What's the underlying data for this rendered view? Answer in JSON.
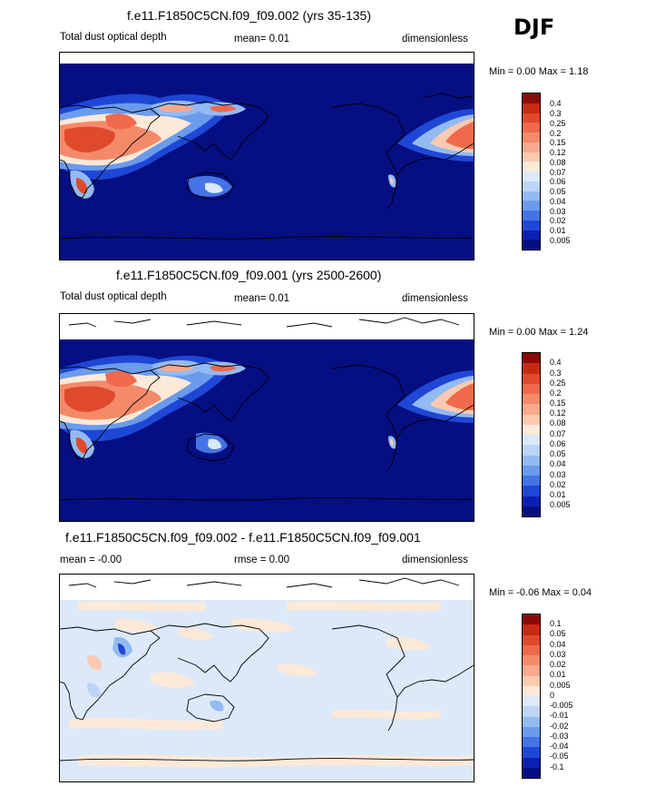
{
  "season": "DJF",
  "panels": [
    {
      "title": "f.e11.F1850C5CN.f09_f09.002 (yrs 35-135)",
      "left_label": "Total dust optical depth",
      "mid_label": "mean=  0.01",
      "right_label": "dimensionless",
      "min_max": "Min =  0.00 Max =  1.18",
      "colorbar": {
        "labels": [
          "0.4",
          "0.3",
          "0.25",
          "0.2",
          "0.15",
          "0.12",
          "0.08",
          "0.07",
          "0.06",
          "0.05",
          "0.04",
          "0.03",
          "0.02",
          "0.01",
          "0.005"
        ],
        "colors": [
          "#8b0a0a",
          "#c62b12",
          "#df4a2c",
          "#ee6a4b",
          "#f58a6a",
          "#f9a98c",
          "#fccab0",
          "#fde9d8",
          "#dbe9fb",
          "#bcd5f7",
          "#94baf2",
          "#6b9bec",
          "#4474e6",
          "#1f47d6",
          "#0c1fb3",
          "#050f82"
        ]
      },
      "map_type": "dust_aod"
    },
    {
      "title": "f.e11.F1850C5CN.f09_f09.001 (yrs 2500-2600)",
      "left_label": "Total dust optical depth",
      "mid_label": "mean=  0.01",
      "right_label": "dimensionless",
      "min_max": "Min =  0.00 Max =  1.24",
      "colorbar": {
        "labels": [
          "0.4",
          "0.3",
          "0.25",
          "0.2",
          "0.15",
          "0.12",
          "0.08",
          "0.07",
          "0.06",
          "0.05",
          "0.04",
          "0.03",
          "0.02",
          "0.01",
          "0.005"
        ],
        "colors": [
          "#8b0a0a",
          "#c62b12",
          "#df4a2c",
          "#ee6a4b",
          "#f58a6a",
          "#f9a98c",
          "#fccab0",
          "#fde9d8",
          "#dbe9fb",
          "#bcd5f7",
          "#94baf2",
          "#6b9bec",
          "#4474e6",
          "#1f47d6",
          "#0c1fb3",
          "#050f82"
        ]
      },
      "map_type": "dust_aod"
    },
    {
      "title": "f.e11.F1850C5CN.f09_f09.002 - f.e11.F1850C5CN.f09_f09.001",
      "left_label": "mean =  -0.00",
      "mid_label": "rmse =   0.00",
      "right_label": "dimensionless",
      "min_max": "Min =  -0.06 Max =   0.04",
      "colorbar": {
        "labels": [
          "0.1",
          "0.05",
          "0.04",
          "0.03",
          "0.02",
          "0.01",
          "0.005",
          "0",
          "-0.005",
          "-0.01",
          "-0.02",
          "-0.03",
          "-0.04",
          "-0.05",
          "-0.1"
        ],
        "colors": [
          "#8b0a0a",
          "#c62b12",
          "#df4a2c",
          "#ee6a4b",
          "#f58a6a",
          "#f9a98c",
          "#fccab0",
          "#fde9d8",
          "#dbe9fb",
          "#bcd5f7",
          "#94baf2",
          "#6b9bec",
          "#4474e6",
          "#1f47d6",
          "#0c1fb3",
          "#050f82"
        ]
      },
      "map_type": "difference"
    }
  ]
}
